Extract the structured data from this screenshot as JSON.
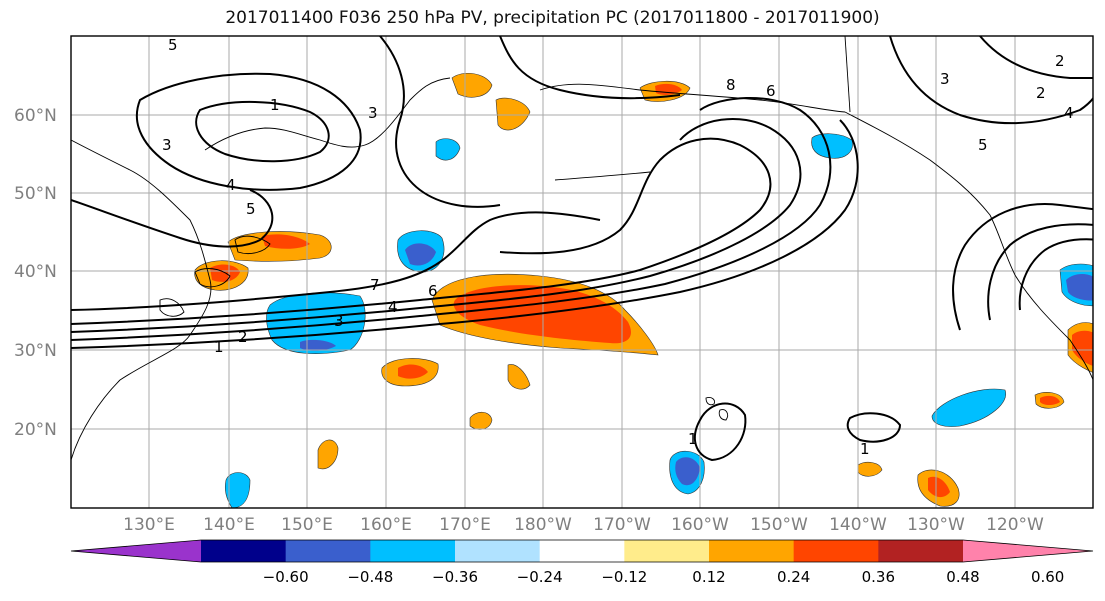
{
  "title": "2017011400 F036 250 hPa PV, precipitation PC (2017011800 - 2017011900)",
  "lat_labels": [
    "60°N",
    "50°N",
    "40°N",
    "30°N",
    "20°N"
  ],
  "lon_labels": [
    "130°E",
    "140°E",
    "150°E",
    "160°E",
    "170°E",
    "180°W",
    "170°W",
    "160°W",
    "150°W",
    "140°W",
    "130°W",
    "120°W"
  ],
  "colorbar": {
    "colors": [
      "#9a33cc",
      "#00008b",
      "#3a5fcd",
      "#00bfff",
      "#b0e2ff",
      "#ffffff",
      "#ffec8b",
      "#ffa500",
      "#ff4500",
      "#b22222",
      "#ff82ab"
    ],
    "ticks": [
      "−0.60",
      "−0.48",
      "−0.36",
      "−0.24",
      "−0.12",
      "0.12",
      "0.24",
      "0.36",
      "0.48",
      "0.60"
    ]
  },
  "contour_labels": [
    "5",
    "1",
    "3",
    "4",
    "5",
    "3",
    "8",
    "6",
    "3",
    "2",
    "4",
    "5",
    "2",
    "7",
    "6",
    "4",
    "3",
    "2",
    "1",
    "1",
    "1"
  ]
}
